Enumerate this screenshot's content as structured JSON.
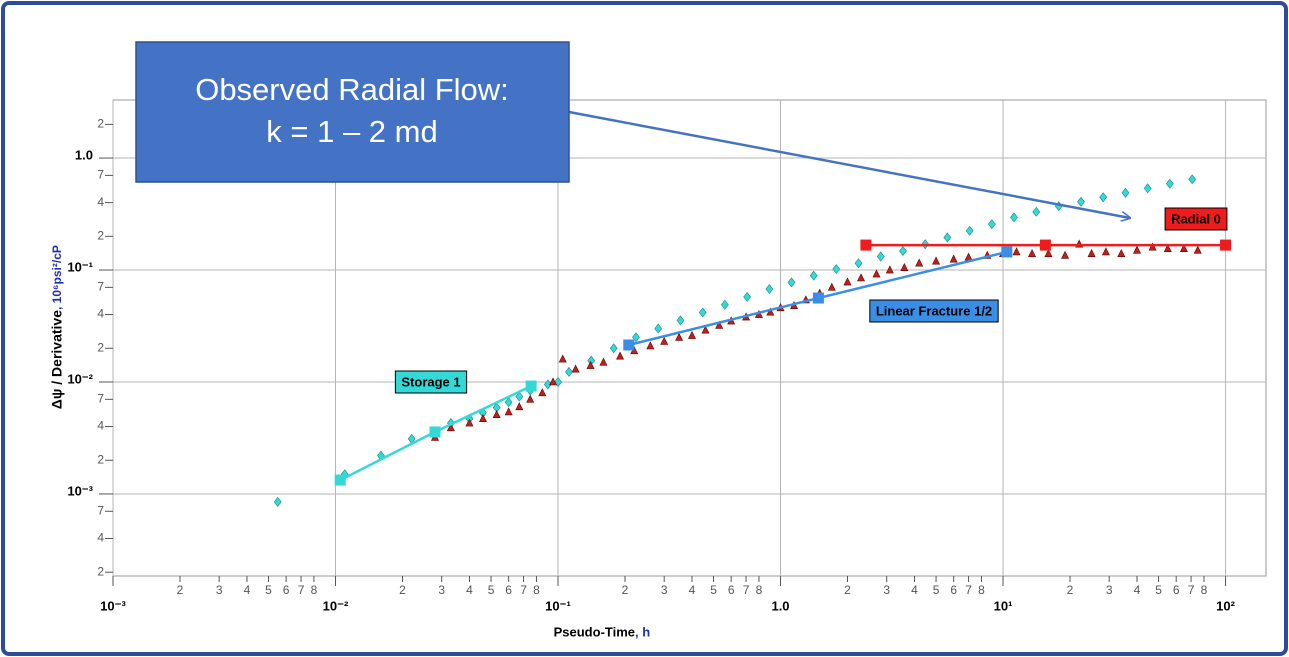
{
  "chart_data": {
    "type": "scatter",
    "xscale": "log",
    "yscale": "log",
    "xlim": [
      0.001,
      152
    ],
    "ylim": [
      0.000185,
      3.3
    ],
    "grid": "major",
    "x_label": "Pseudo-Time",
    "x_unit": ", h",
    "y_label": "Δψ / Derivative",
    "y_unit": ", 10⁶psi²/cP",
    "xticks": [
      {
        "value": 0.001,
        "label": "10⁻³"
      },
      {
        "value": 0.002,
        "label": "2"
      },
      {
        "value": 0.003,
        "label": "3"
      },
      {
        "value": 0.004,
        "label": "4"
      },
      {
        "value": 0.005,
        "label": "5"
      },
      {
        "value": 0.006,
        "label": "6"
      },
      {
        "value": 0.007,
        "label": "7"
      },
      {
        "value": 0.008,
        "label": "8"
      },
      {
        "value": 0.01,
        "label": "10⁻²"
      },
      {
        "value": 0.02,
        "label": "2"
      },
      {
        "value": 0.03,
        "label": "3"
      },
      {
        "value": 0.04,
        "label": "4"
      },
      {
        "value": 0.05,
        "label": "5"
      },
      {
        "value": 0.06,
        "label": "6"
      },
      {
        "value": 0.07,
        "label": "7"
      },
      {
        "value": 0.08,
        "label": "8"
      },
      {
        "value": 0.1,
        "label": "10⁻¹"
      },
      {
        "value": 0.2,
        "label": "2"
      },
      {
        "value": 0.3,
        "label": "3"
      },
      {
        "value": 0.4,
        "label": "4"
      },
      {
        "value": 0.5,
        "label": "5"
      },
      {
        "value": 0.6,
        "label": "6"
      },
      {
        "value": 0.7,
        "label": "7"
      },
      {
        "value": 0.8,
        "label": "8"
      },
      {
        "value": 1,
        "label": "1.0"
      },
      2,
      3,
      4,
      5,
      6,
      7,
      8,
      {
        "value": 10,
        "label": "10¹"
      },
      {
        "value": 20,
        "label": "2"
      },
      {
        "value": 30,
        "label": "3"
      },
      {
        "value": 40,
        "label": "4"
      },
      {
        "value": 50,
        "label": "5"
      },
      {
        "value": 60,
        "label": "6"
      },
      {
        "value": 70,
        "label": "7"
      },
      {
        "value": 80,
        "label": "8"
      },
      {
        "value": 100,
        "label": "10²"
      }
    ],
    "yticks": [
      {
        "value": 0.0002,
        "label": "2"
      },
      {
        "value": 0.0004,
        "label": "4"
      },
      {
        "value": 0.0007,
        "label": "7"
      },
      {
        "value": 0.001,
        "label": "10⁻³"
      },
      {
        "value": 0.002,
        "label": "2"
      },
      {
        "value": 0.004,
        "label": "4"
      },
      {
        "value": 0.007,
        "label": "7"
      },
      {
        "value": 0.01,
        "label": "10⁻²"
      },
      {
        "value": 0.02,
        "label": "2"
      },
      {
        "value": 0.04,
        "label": "4"
      },
      {
        "value": 0.07,
        "label": "7"
      },
      {
        "value": 0.1,
        "label": "10⁻¹"
      },
      {
        "value": 0.2,
        "label": "2"
      },
      {
        "value": 0.4,
        "label": "4"
      },
      {
        "value": 0.7,
        "label": "7"
      },
      {
        "value": 1,
        "label": "1.0"
      },
      2
    ],
    "series": [
      {
        "color": "#33d9d6",
        "marker": "diamond",
        "x": [
          0.0055,
          0.011,
          0.016,
          0.022,
          0.028,
          0.033,
          0.04,
          0.046,
          0.053,
          0.06,
          0.067,
          0.075,
          0.09,
          0.1,
          0.112,
          0.141,
          0.178,
          0.224,
          0.282,
          0.355,
          0.447,
          0.562,
          0.708,
          0.891,
          1.12,
          1.41,
          1.78,
          2.24,
          2.82,
          3.55,
          4.47,
          5.62,
          7.08,
          8.91,
          11.2,
          14.1,
          17.8,
          22.4,
          28.2,
          35.5,
          44.7,
          56.2,
          70.8
        ],
        "values": [
          0.00085,
          0.0015,
          0.0022,
          0.0031,
          0.0036,
          0.0043,
          0.0047,
          0.0053,
          0.0059,
          0.0066,
          0.0074,
          0.0084,
          0.0095,
          0.01,
          0.0123,
          0.0155,
          0.02,
          0.0251,
          0.03,
          0.0355,
          0.0417,
          0.049,
          0.0575,
          0.0676,
          0.0776,
          0.0891,
          0.102,
          0.115,
          0.132,
          0.148,
          0.17,
          0.195,
          0.224,
          0.257,
          0.295,
          0.331,
          0.372,
          0.407,
          0.447,
          0.49,
          0.537,
          0.589,
          0.646
        ]
      },
      {
        "color": "#c0201d",
        "marker": "triangle",
        "x": [
          0.028,
          0.033,
          0.04,
          0.046,
          0.053,
          0.06,
          0.067,
          0.075,
          0.085,
          0.095,
          0.105,
          0.12,
          0.14,
          0.16,
          0.19,
          0.22,
          0.26,
          0.3,
          0.35,
          0.4,
          0.46,
          0.53,
          0.6,
          0.7,
          0.8,
          0.9,
          1.0,
          1.15,
          1.3,
          1.5,
          1.7,
          2.0,
          2.3,
          2.7,
          3.1,
          3.6,
          4.2,
          5,
          6,
          7,
          8.5,
          10,
          11.5,
          13.5,
          16,
          19,
          22,
          25,
          29,
          34,
          40,
          47,
          55,
          65,
          75
        ],
        "values": [
          0.0032,
          0.0039,
          0.0043,
          0.0047,
          0.0051,
          0.0054,
          0.006,
          0.007,
          0.008,
          0.01,
          0.016,
          0.013,
          0.014,
          0.015,
          0.017,
          0.019,
          0.021,
          0.023,
          0.025,
          0.026,
          0.029,
          0.032,
          0.035,
          0.038,
          0.04,
          0.042,
          0.046,
          0.048,
          0.054,
          0.062,
          0.07,
          0.078,
          0.085,
          0.092,
          0.1,
          0.105,
          0.115,
          0.12,
          0.125,
          0.13,
          0.135,
          0.14,
          0.145,
          0.14,
          0.14,
          0.135,
          0.17,
          0.14,
          0.145,
          0.14,
          0.15,
          0.16,
          0.155,
          0.155,
          0.15
        ]
      }
    ],
    "fits": [
      {
        "name": "Storage 1",
        "color": "#33d9d6",
        "x": [
          0.0105,
          0.028,
          0.0757
        ],
        "values": [
          0.00133,
          0.00358,
          0.0092
        ]
      },
      {
        "name": "Linear Fracture 1/2",
        "color": "#3a8ee6",
        "x": [
          0.208,
          1.48,
          10.4
        ],
        "values": [
          0.0214,
          0.0562,
          0.145
        ]
      },
      {
        "name": "Radial 0",
        "color": "#ee1c1c",
        "x": [
          2.42,
          15.5,
          100
        ],
        "values": [
          0.167,
          0.167,
          0.167
        ]
      }
    ],
    "annotation": {
      "lines": [
        "Observed Radial Flow:",
        "k = 1 – 2 md"
      ]
    }
  }
}
